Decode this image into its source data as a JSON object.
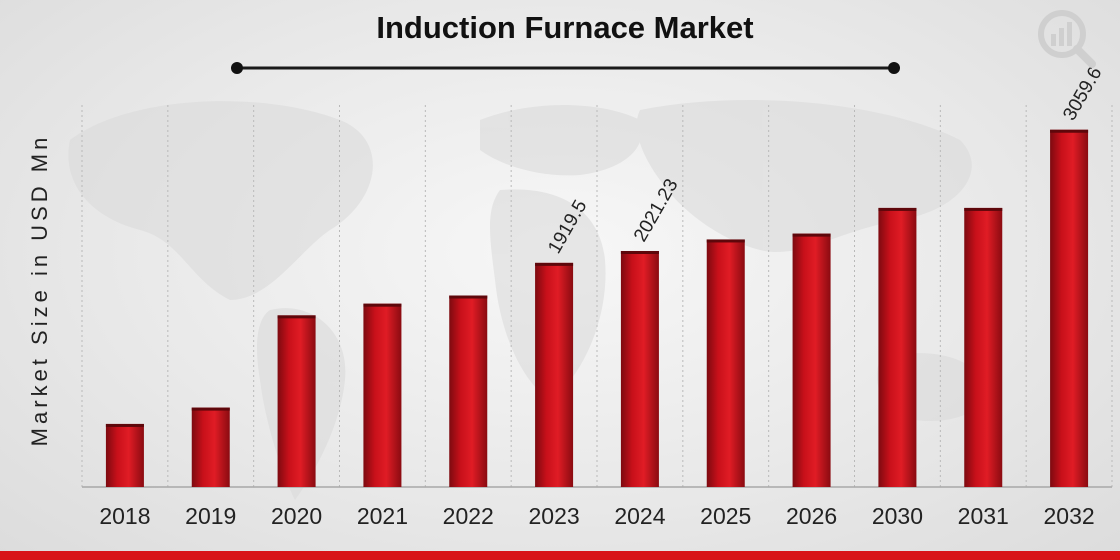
{
  "chart_data": {
    "type": "bar",
    "title": "Induction Furnace Market",
    "ylabel": "Market Size in USD Mn",
    "xlabel": "",
    "categories": [
      "2018",
      "2019",
      "2020",
      "2021",
      "2022",
      "2023",
      "2024",
      "2025",
      "2026",
      "2030",
      "2031",
      "2032"
    ],
    "values": [
      540,
      680,
      1470,
      1570,
      1640,
      1919.5,
      2021.23,
      2120,
      2170,
      2390,
      2390,
      3059.6
    ],
    "data_labels": {
      "5": "1919.5",
      "6": "2021.23",
      "11": "3059.6"
    },
    "ylim": [
      0,
      3400
    ],
    "grid": "vertical dotted lines",
    "bar_color": "#c8101a",
    "legend": "none"
  },
  "logo": {
    "icon": "chart-magnifier-logo-icon"
  }
}
